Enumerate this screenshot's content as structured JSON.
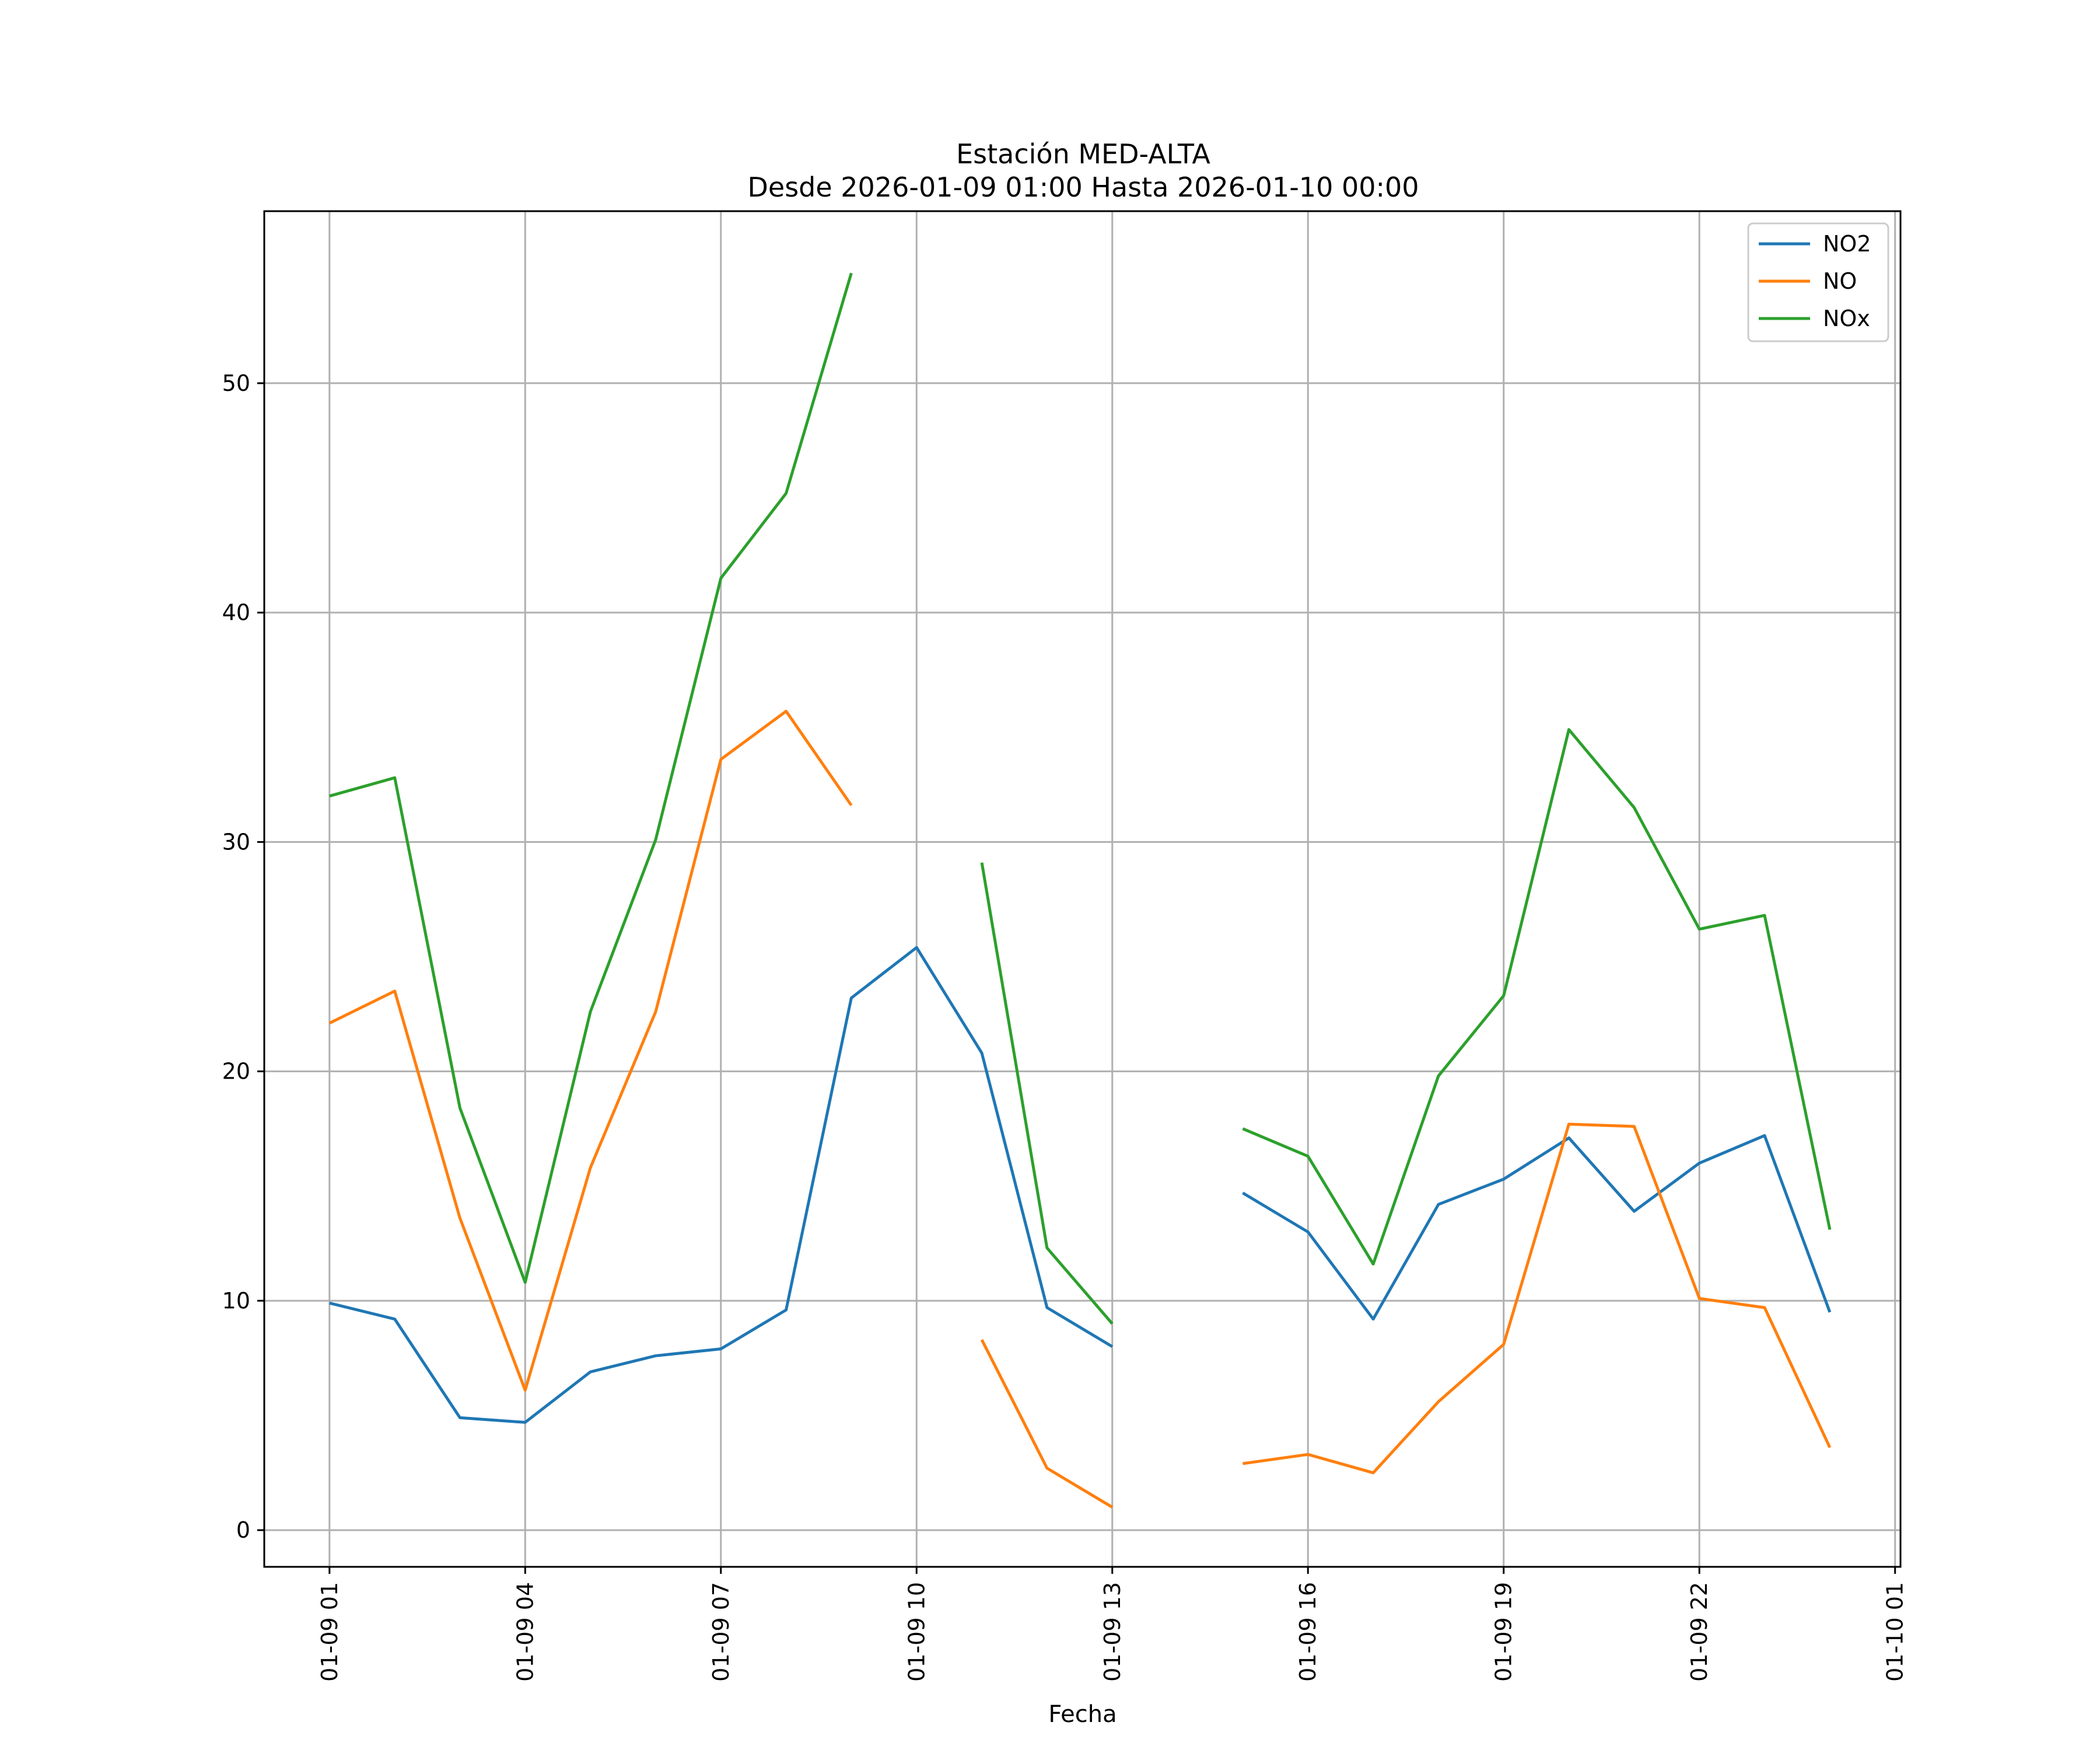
{
  "chart_data": {
    "type": "line",
    "title": "Estación MED-ALTA",
    "subtitle": "Desde 2026-01-09 01:00 Hasta 2026-01-10 00:00",
    "xlabel": "Fecha",
    "ylabel": "",
    "x": [
      "01-09 01",
      "01-09 02",
      "01-09 03",
      "01-09 04",
      "01-09 05",
      "01-09 06",
      "01-09 07",
      "01-09 08",
      "01-09 09",
      "01-09 10",
      "01-09 11",
      "01-09 12",
      "01-09 13",
      "01-09 14",
      "01-09 15",
      "01-09 16",
      "01-09 17",
      "01-09 18",
      "01-09 19",
      "01-09 20",
      "01-09 21",
      "01-09 22",
      "01-09 23",
      "01-10 00"
    ],
    "x_ticks": [
      "01-09 01",
      "01-09 04",
      "01-09 07",
      "01-09 10",
      "01-09 13",
      "01-09 16",
      "01-09 19",
      "01-09 22",
      "01-10 01"
    ],
    "xlim": [
      "01-09 00:00",
      "01-10 01:05"
    ],
    "y_ticks": [
      0,
      10,
      20,
      30,
      40,
      50
    ],
    "ylim": [
      -1.6,
      57.5
    ],
    "grid": true,
    "legend_position": "top-right",
    "series": [
      {
        "name": "NO2",
        "color": "#1f77b4",
        "values": [
          9.9,
          9.2,
          4.9,
          4.7,
          6.9,
          7.6,
          7.9,
          9.6,
          23.2,
          25.4,
          20.8,
          9.7,
          8.0,
          null,
          14.7,
          13.0,
          9.2,
          14.2,
          15.3,
          17.1,
          13.9,
          16.0,
          17.2,
          9.5
        ]
      },
      {
        "name": "NO",
        "color": "#ff7f0e",
        "values": [
          22.1,
          23.5,
          13.6,
          6.1,
          15.8,
          22.6,
          33.6,
          35.7,
          31.6,
          null,
          8.3,
          2.7,
          1.0,
          null,
          2.9,
          3.3,
          2.5,
          5.6,
          8.1,
          17.7,
          17.6,
          10.1,
          9.7,
          3.6
        ]
      },
      {
        "name": "NOx",
        "color": "#2ca02c",
        "values": [
          32.0,
          32.8,
          18.4,
          10.8,
          22.6,
          30.1,
          41.5,
          45.2,
          54.8,
          null,
          29.1,
          12.3,
          9.0,
          null,
          17.5,
          16.3,
          11.6,
          19.8,
          23.3,
          34.9,
          31.5,
          26.2,
          26.8,
          13.1
        ]
      }
    ]
  }
}
